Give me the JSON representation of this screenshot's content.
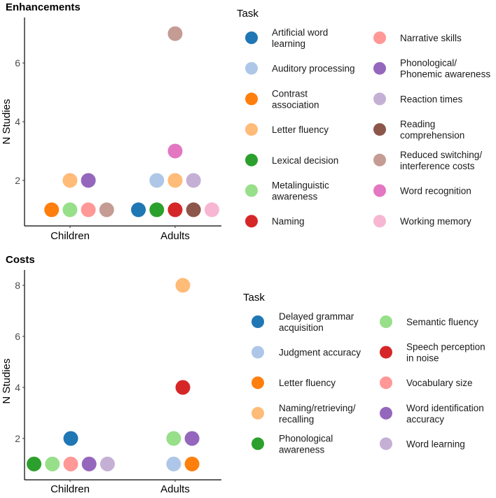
{
  "chart_data": [
    {
      "type": "scatter",
      "title": "Enhancements",
      "ylabel": "N Studies",
      "xlabel": "",
      "categories": [
        "Children",
        "Adults"
      ],
      "ylim": [
        0.45,
        7.55
      ],
      "yticks": [
        2,
        4,
        6
      ],
      "legend_title": "Task",
      "legend_placement": "right",
      "legend": [
        {
          "label": "Artificial word learning",
          "lines": [
            "Artificial word",
            "learning"
          ],
          "color": "#1f77b4"
        },
        {
          "label": "Auditory processing",
          "lines": [
            "Auditory processing"
          ],
          "color": "#aec7e8"
        },
        {
          "label": "Contrast association",
          "lines": [
            "Contrast",
            "association"
          ],
          "color": "#ff7f0e"
        },
        {
          "label": "Letter fluency",
          "lines": [
            "Letter fluency"
          ],
          "color": "#ffbb78"
        },
        {
          "label": "Lexical decision",
          "lines": [
            "Lexical decision"
          ],
          "color": "#2ca02c"
        },
        {
          "label": "Metalinguistic awareness",
          "lines": [
            "Metalinguistic",
            "awareness"
          ],
          "color": "#98df8a"
        },
        {
          "label": "Naming",
          "lines": [
            "Naming"
          ],
          "color": "#d62728"
        },
        {
          "label": "Narrative skills",
          "lines": [
            "Narrative skills"
          ],
          "color": "#ff9896"
        },
        {
          "label": "Phonological/ Phonemic awareness",
          "lines": [
            "Phonological/",
            "Phonemic awareness"
          ],
          "color": "#9467bd"
        },
        {
          "label": "Reaction times",
          "lines": [
            "Reaction times"
          ],
          "color": "#c5b0d5"
        },
        {
          "label": "Reading comprehension",
          "lines": [
            "Reading",
            "comprehension"
          ],
          "color": "#8c564b"
        },
        {
          "label": "Reduced switching/ interference costs",
          "lines": [
            "Reduced switching/",
            "interference costs"
          ],
          "color": "#c49c94"
        },
        {
          "label": "Word recognition",
          "lines": [
            "Word recognition"
          ],
          "color": "#e377c2"
        },
        {
          "label": "Working memory",
          "lines": [
            "Working memory"
          ],
          "color": "#f7b6d2"
        }
      ],
      "points": [
        {
          "group": "Children",
          "task": "Contrast association",
          "n": 1
        },
        {
          "group": "Children",
          "task": "Metalinguistic awareness",
          "n": 1
        },
        {
          "group": "Children",
          "task": "Narrative skills",
          "n": 1
        },
        {
          "group": "Children",
          "task": "Reduced switching/ interference costs",
          "n": 1
        },
        {
          "group": "Children",
          "task": "Letter fluency",
          "n": 2
        },
        {
          "group": "Children",
          "task": "Phonological/ Phonemic awareness",
          "n": 2
        },
        {
          "group": "Adults",
          "task": "Artificial word learning",
          "n": 1
        },
        {
          "group": "Adults",
          "task": "Lexical decision",
          "n": 1
        },
        {
          "group": "Adults",
          "task": "Naming",
          "n": 1
        },
        {
          "group": "Adults",
          "task": "Reading comprehension",
          "n": 1
        },
        {
          "group": "Adults",
          "task": "Working memory",
          "n": 1
        },
        {
          "group": "Adults",
          "task": "Auditory processing",
          "n": 2
        },
        {
          "group": "Adults",
          "task": "Letter fluency",
          "n": 2
        },
        {
          "group": "Adults",
          "task": "Reaction times",
          "n": 2
        },
        {
          "group": "Adults",
          "task": "Word recognition",
          "n": 3
        },
        {
          "group": "Adults",
          "task": "Reduced switching/ interference costs",
          "n": 7
        }
      ]
    },
    {
      "type": "scatter",
      "title": "Costs",
      "ylabel": "N Studies",
      "xlabel": "",
      "categories": [
        "Children",
        "Adults"
      ],
      "ylim": [
        0.38,
        8.6
      ],
      "yticks": [
        2,
        4,
        6,
        8
      ],
      "legend_title": "Task",
      "legend_placement": "right",
      "legend": [
        {
          "label": "Delayed grammar acquisition",
          "lines": [
            "Delayed grammar",
            "acquisition"
          ],
          "color": "#1f77b4"
        },
        {
          "label": "Judgment accuracy",
          "lines": [
            "Judgment accuracy"
          ],
          "color": "#aec7e8"
        },
        {
          "label": "Letter fluency",
          "lines": [
            "Letter fluency"
          ],
          "color": "#ff7f0e"
        },
        {
          "label": "Naming/retrieving/ recalling",
          "lines": [
            "Naming/retrieving/",
            "recalling"
          ],
          "color": "#ffbb78"
        },
        {
          "label": "Phonological awareness",
          "lines": [
            "Phonological",
            "awareness"
          ],
          "color": "#2ca02c"
        },
        {
          "label": "Semantic fluency",
          "lines": [
            "Semantic fluency"
          ],
          "color": "#98df8a"
        },
        {
          "label": "Speech perception in noise",
          "lines": [
            "Speech perception",
            "in noise"
          ],
          "color": "#d62728"
        },
        {
          "label": "Vocabulary size",
          "lines": [
            "Vocabulary size"
          ],
          "color": "#ff9896"
        },
        {
          "label": "Word identification accuracy",
          "lines": [
            "Word identification",
            "accuracy"
          ],
          "color": "#9467bd"
        },
        {
          "label": "Word learning",
          "lines": [
            "Word learning"
          ],
          "color": "#c5b0d5"
        }
      ],
      "points": [
        {
          "group": "Children",
          "task": "Phonological awareness",
          "n": 1
        },
        {
          "group": "Children",
          "task": "Semantic fluency",
          "n": 1
        },
        {
          "group": "Children",
          "task": "Vocabulary size",
          "n": 1
        },
        {
          "group": "Children",
          "task": "Word identification accuracy",
          "n": 1
        },
        {
          "group": "Children",
          "task": "Word learning",
          "n": 1
        },
        {
          "group": "Children",
          "task": "Delayed grammar acquisition",
          "n": 2
        },
        {
          "group": "Adults",
          "task": "Judgment accuracy",
          "n": 1
        },
        {
          "group": "Adults",
          "task": "Letter fluency",
          "n": 1
        },
        {
          "group": "Adults",
          "task": "Semantic fluency",
          "n": 2
        },
        {
          "group": "Adults",
          "task": "Word identification accuracy",
          "n": 2
        },
        {
          "group": "Adults",
          "task": "Speech perception in noise",
          "n": 4
        },
        {
          "group": "Adults",
          "task": "Naming/retrieving/ recalling",
          "n": 8
        }
      ]
    }
  ]
}
